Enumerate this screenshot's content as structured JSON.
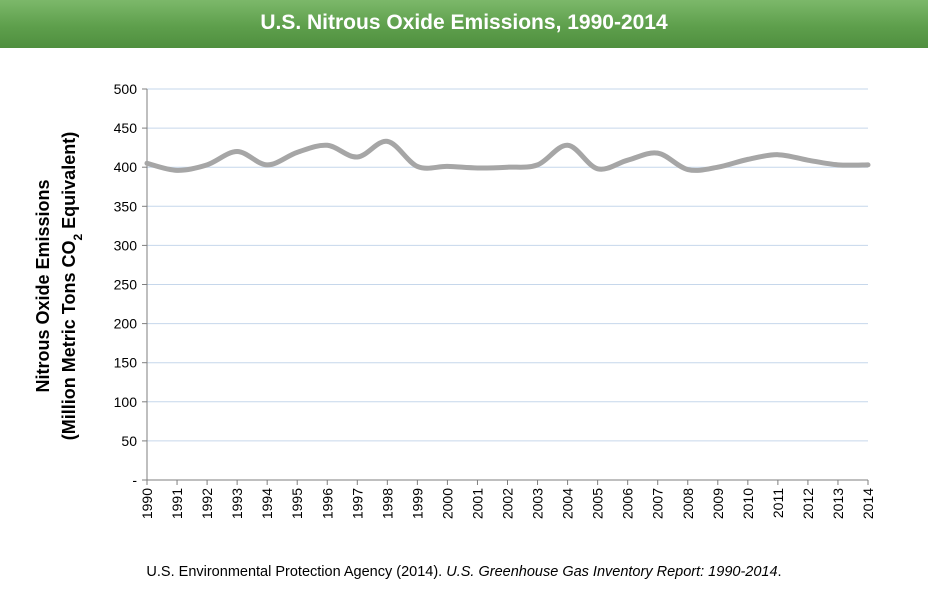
{
  "banner": {
    "title": "U.S. Nitrous Oxide Emissions, 1990-2014"
  },
  "caption": {
    "plain": "U.S. Environmental Protection Agency (2014). ",
    "italic": "U.S. Greenhouse Gas Inventory Report: 1990-2014",
    "end": "."
  },
  "colors": {
    "banner": "#5e9f4c",
    "line": "#a6a6a6",
    "grid": "#c6d7eb"
  },
  "chart_data": {
    "type": "line",
    "ylabel_line1": "Nitrous Oxide Emissions",
    "ylabel_line2": "(Million Metric Tons CO",
    "ylabel_sub": "2",
    "ylabel_end": " Equivalent)",
    "ylim": [
      0,
      500
    ],
    "yticks": [
      "-",
      "50",
      "100",
      "150",
      "200",
      "250",
      "300",
      "350",
      "400",
      "450",
      "500"
    ],
    "grid": true,
    "x": [
      "1990",
      "1991",
      "1992",
      "1993",
      "1994",
      "1995",
      "1996",
      "1997",
      "1998",
      "1999",
      "2000",
      "2001",
      "2002",
      "2003",
      "2004",
      "2005",
      "2006",
      "2007",
      "2008",
      "2009",
      "2010",
      "2011",
      "2012",
      "2013",
      "2014"
    ],
    "series": [
      {
        "values": [
          405,
          396,
          403,
          420,
          403,
          419,
          428,
          413,
          433,
          401,
          401,
          399,
          400,
          403,
          428,
          398,
          409,
          418,
          397,
          400,
          410,
          416,
          409,
          403,
          403
        ]
      }
    ]
  }
}
